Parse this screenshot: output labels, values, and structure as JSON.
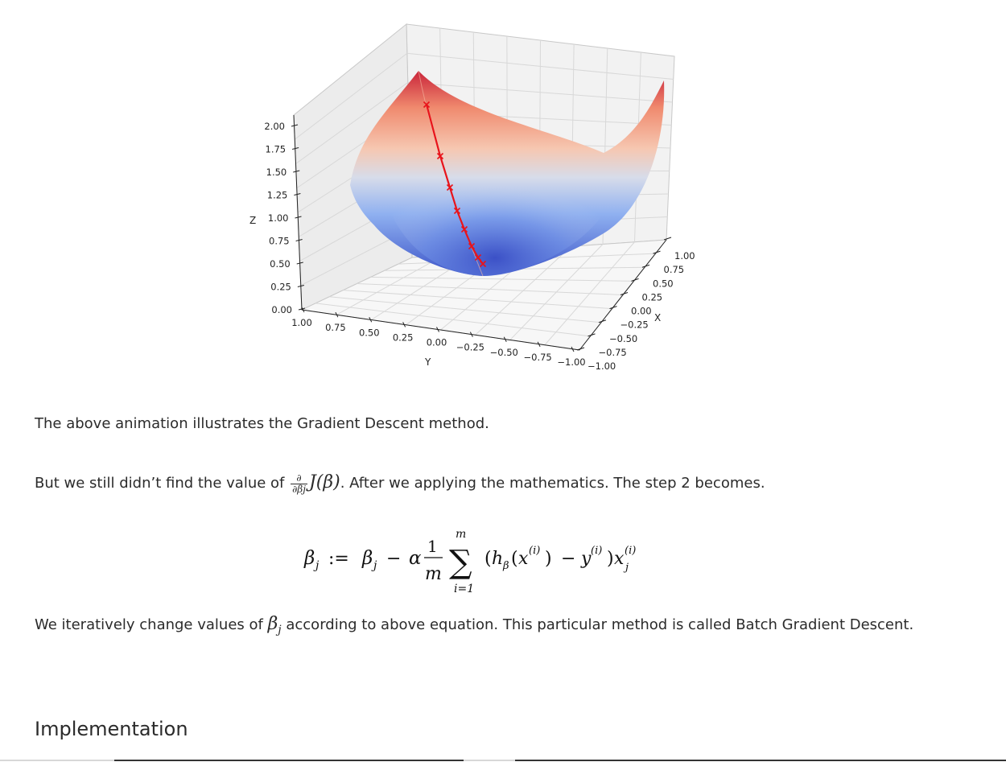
{
  "figure": {
    "z_axis_label": "Z",
    "x_axis_label": "X",
    "y_axis_label": "Y",
    "z_ticks": [
      "0.00",
      "0.25",
      "0.50",
      "0.75",
      "1.00",
      "1.25",
      "1.50",
      "1.75",
      "2.00"
    ],
    "x_ticks": [
      "1.00",
      "0.75",
      "0.50",
      "0.25",
      "0.00",
      "−0.25",
      "−0.50",
      "−0.75",
      "−1.00"
    ],
    "y_ticks": [
      "1.00",
      "0.75",
      "0.50",
      "0.25",
      "0.00",
      "−0.25",
      "−0.50",
      "−0.75",
      "−1.00"
    ],
    "surface_colormap": "coolwarm",
    "path_color": "#e8141b"
  },
  "text": {
    "p1": "The above animation illustrates the Gradient Descent method.",
    "p2_before": "But we still didn’t find the value of ",
    "p2_frac_num": "∂",
    "p2_frac_den": "∂βj",
    "p2_expr": "J(β)",
    "p2_after": ". After we applying the mathematics. The step 2 becomes.",
    "p3_before": "We iteratively change values of ",
    "p3_beta": "β",
    "p3_sub": "j",
    "p3_after": " according to above equation. This particular method is called Batch Gradient Descent."
  },
  "equation": {
    "lhs": "βj := βj − α",
    "frac_num": "1",
    "frac_den": "m",
    "sum_top": "m",
    "sum_bottom": "i=1",
    "body": "(hβ(x(i)) − y(i))xj(i)"
  },
  "section": {
    "heading": "Implementation"
  }
}
